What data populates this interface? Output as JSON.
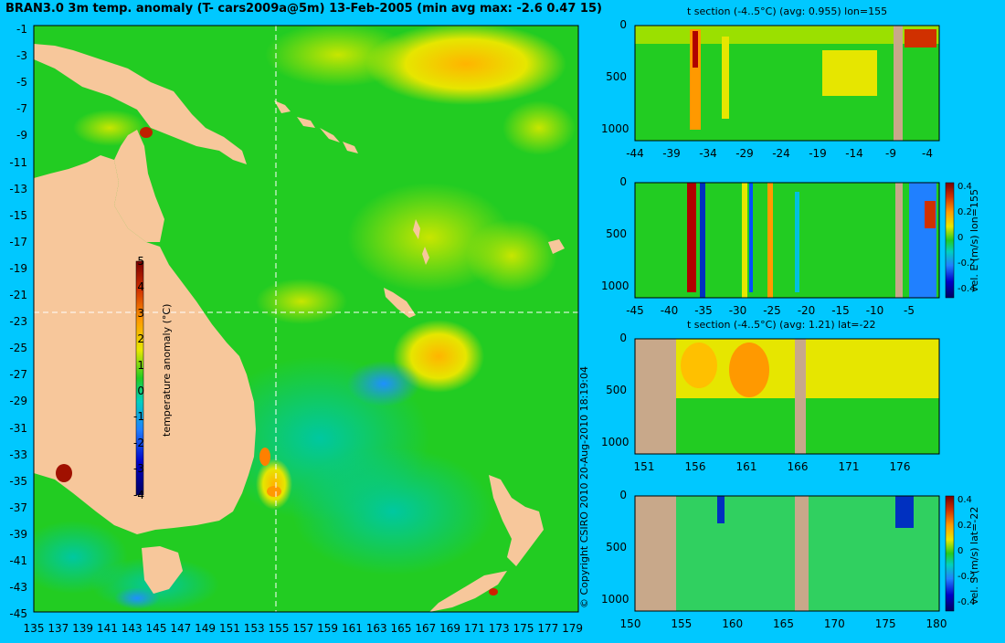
{
  "title": "BRAN3.0 3m temp. anomaly (T- cars2009a@5m) 13-Feb-2005 (min avg max: -2.6 0.47 15)",
  "map": {
    "y_ticks": [
      "-1",
      "-3",
      "-5",
      "-7",
      "-9",
      "-11",
      "-13",
      "-15",
      "-17",
      "-19",
      "-21",
      "-23",
      "-25",
      "-27",
      "-29",
      "-31",
      "-33",
      "-35",
      "-37",
      "-39",
      "-41",
      "-43",
      "-45"
    ],
    "x_ticks": [
      "135",
      "137",
      "139",
      "141",
      "143",
      "145",
      "147",
      "149",
      "151",
      "153",
      "155",
      "157",
      "159",
      "161",
      "163",
      "165",
      "167",
      "169",
      "171",
      "173",
      "175",
      "177",
      "179"
    ],
    "section_lon": 155,
    "section_lat": -22,
    "colorbar": {
      "ticks": [
        "5",
        "4",
        "3",
        "2",
        "1",
        "0",
        "-1",
        "-2",
        "-3",
        "-4"
      ],
      "label": "temperature anomaly (°C)"
    }
  },
  "copyright": "© Copyright CSIRO 2010   20-Aug-2010 18:19:04",
  "panels": {
    "t_lon": {
      "title": "t section (-4..5°C) (avg: 0.955) lon=155",
      "y_ticks": [
        "0",
        "500",
        "1000"
      ],
      "x_ticks": [
        "-44",
        "-39",
        "-34",
        "-29",
        "-24",
        "-19",
        "-14",
        "-9",
        "-4"
      ]
    },
    "u_lon": {
      "x_ticks": [
        "-45",
        "-40",
        "-35",
        "-30",
        "-25",
        "-20",
        "-15",
        "-10",
        "-5"
      ],
      "y_ticks": [
        "0",
        "500",
        "1000"
      ],
      "cbar_ticks": [
        "0.4",
        "0.2",
        "0",
        "-0.2",
        "-0.4"
      ],
      "cbar_label": "vel. E (m/s) lon=155"
    },
    "t_lat": {
      "title": "t section (-4..5°C) (avg: 1.21) lat=-22",
      "y_ticks": [
        "0",
        "500",
        "1000"
      ],
      "x_ticks": [
        "151",
        "156",
        "161",
        "166",
        "171",
        "176"
      ]
    },
    "v_lat": {
      "x_ticks": [
        "150",
        "155",
        "160",
        "165",
        "170",
        "175",
        "180"
      ],
      "y_ticks": [
        "0",
        "500",
        "1000"
      ],
      "cbar_ticks": [
        "0.4",
        "0.2",
        "0",
        "-0.2",
        "-0.4"
      ],
      "cbar_label": "vel. S (m/s) lat=-22"
    }
  },
  "colors": {
    "background": "#00c8ff",
    "land": "#f7c79b",
    "section_land": "#c8a88a",
    "ocean_base": "#22cc22"
  }
}
